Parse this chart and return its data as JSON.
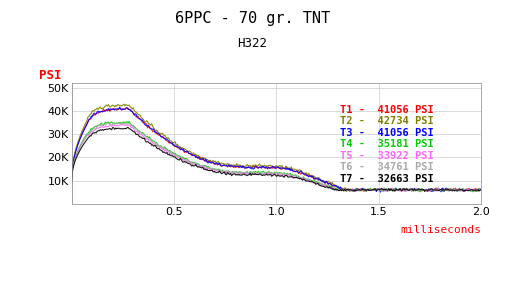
{
  "title": "6PPC - 70 gr. TNT",
  "subtitle": "H322",
  "ylabel": "PSI",
  "xlabel": "milliseconds",
  "background_color": "#ffffff",
  "plot_bg_color": "#ffffff",
  "grid_color": "#cccccc",
  "title_fontsize": 11,
  "subtitle_fontsize": 9,
  "series": [
    {
      "label": "T1",
      "peak": 41056,
      "color": "#ff0000"
    },
    {
      "label": "T2",
      "peak": 42734,
      "color": "#808000"
    },
    {
      "label": "T3",
      "peak": 41056,
      "color": "#0000ff"
    },
    {
      "label": "T4",
      "peak": 35181,
      "color": "#00cc00"
    },
    {
      "label": "T5",
      "peak": 33922,
      "color": "#ff66ff"
    },
    {
      "label": "T6",
      "peak": 34761,
      "color": "#aaaaaa"
    },
    {
      "label": "T7",
      "peak": 32663,
      "color": "#000000"
    }
  ],
  "ylim": [
    0,
    52000
  ],
  "xlim": [
    0,
    2.0
  ],
  "yticks": [
    0,
    10000,
    20000,
    30000,
    40000,
    50000
  ],
  "ytick_labels": [
    "",
    "10K",
    "20K",
    "30K",
    "40K",
    "50K"
  ],
  "xticks": [
    0.0,
    0.5,
    1.0,
    1.5,
    2.0
  ]
}
